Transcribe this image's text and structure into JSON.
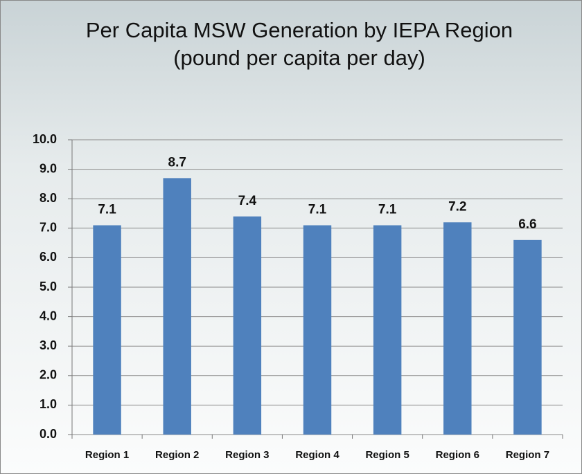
{
  "chart_data": {
    "type": "bar",
    "title": "Per Capita MSW Generation by IEPA Region",
    "subtitle": "(pound per capita per day)",
    "categories": [
      "Region 1",
      "Region 2",
      "Region 3",
      "Region 4",
      "Region 5",
      "Region 6",
      "Region 7"
    ],
    "values": [
      7.1,
      8.7,
      7.4,
      7.1,
      7.1,
      7.2,
      6.6
    ],
    "color": "#4f81bd",
    "ylim": [
      0,
      10
    ],
    "yticks": [
      {
        "value": 0,
        "label": "0.0"
      },
      {
        "value": 1,
        "label": "1.0"
      },
      {
        "value": 2,
        "label": "2.0"
      },
      {
        "value": 3,
        "label": "3.0"
      },
      {
        "value": 4,
        "label": "4.0"
      },
      {
        "value": 5,
        "label": "5.0"
      },
      {
        "value": 6,
        "label": "6.0"
      },
      {
        "value": 7,
        "label": "7.0"
      },
      {
        "value": 8,
        "label": "8.0"
      },
      {
        "value": 9,
        "label": "9.0"
      },
      {
        "value": 10,
        "label": "10.0"
      }
    ],
    "grid": true
  }
}
